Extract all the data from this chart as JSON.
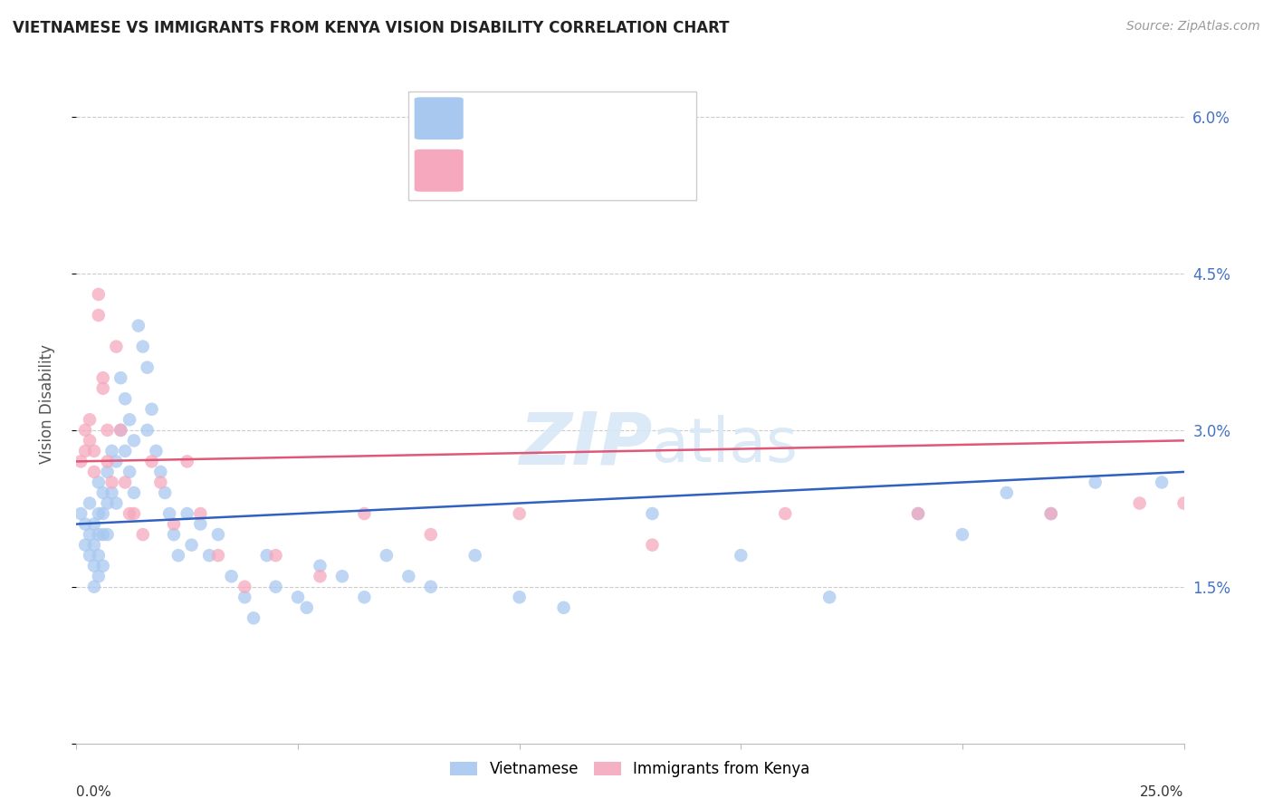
{
  "title": "VIETNAMESE VS IMMIGRANTS FROM KENYA VISION DISABILITY CORRELATION CHART",
  "source": "Source: ZipAtlas.com",
  "ylabel": "Vision Disability",
  "yticks": [
    0.0,
    0.015,
    0.03,
    0.045,
    0.06
  ],
  "ytick_labels": [
    "",
    "1.5%",
    "3.0%",
    "4.5%",
    "6.0%"
  ],
  "xlim": [
    0.0,
    0.25
  ],
  "ylim": [
    0.0,
    0.065
  ],
  "color_blue": "#a8c8f0",
  "color_pink": "#f5a8be",
  "line_blue": "#3060c0",
  "line_pink": "#e05878",
  "label1": "Vietnamese",
  "label2": "Immigrants from Kenya",
  "background": "#ffffff",
  "blue_x": [
    0.001,
    0.002,
    0.002,
    0.003,
    0.003,
    0.003,
    0.004,
    0.004,
    0.004,
    0.004,
    0.005,
    0.005,
    0.005,
    0.005,
    0.005,
    0.006,
    0.006,
    0.006,
    0.006,
    0.007,
    0.007,
    0.007,
    0.008,
    0.008,
    0.009,
    0.009,
    0.01,
    0.01,
    0.011,
    0.011,
    0.012,
    0.012,
    0.013,
    0.013,
    0.014,
    0.015,
    0.016,
    0.016,
    0.017,
    0.018,
    0.019,
    0.02,
    0.021,
    0.022,
    0.023,
    0.025,
    0.026,
    0.028,
    0.03,
    0.032,
    0.035,
    0.038,
    0.04,
    0.043,
    0.045,
    0.05,
    0.052,
    0.055,
    0.06,
    0.065,
    0.07,
    0.075,
    0.08,
    0.09,
    0.1,
    0.11,
    0.13,
    0.15,
    0.17,
    0.19,
    0.2,
    0.21,
    0.22,
    0.23,
    0.245
  ],
  "blue_y": [
    0.022,
    0.021,
    0.019,
    0.018,
    0.02,
    0.023,
    0.021,
    0.019,
    0.017,
    0.015,
    0.025,
    0.022,
    0.02,
    0.018,
    0.016,
    0.024,
    0.022,
    0.02,
    0.017,
    0.026,
    0.023,
    0.02,
    0.028,
    0.024,
    0.027,
    0.023,
    0.035,
    0.03,
    0.033,
    0.028,
    0.031,
    0.026,
    0.029,
    0.024,
    0.04,
    0.038,
    0.036,
    0.03,
    0.032,
    0.028,
    0.026,
    0.024,
    0.022,
    0.02,
    0.018,
    0.022,
    0.019,
    0.021,
    0.018,
    0.02,
    0.016,
    0.014,
    0.012,
    0.018,
    0.015,
    0.014,
    0.013,
    0.017,
    0.016,
    0.014,
    0.018,
    0.016,
    0.015,
    0.018,
    0.014,
    0.013,
    0.022,
    0.018,
    0.014,
    0.022,
    0.02,
    0.024,
    0.022,
    0.025,
    0.025
  ],
  "pink_x": [
    0.001,
    0.002,
    0.002,
    0.003,
    0.003,
    0.004,
    0.004,
    0.005,
    0.005,
    0.006,
    0.006,
    0.007,
    0.007,
    0.008,
    0.009,
    0.01,
    0.011,
    0.012,
    0.013,
    0.015,
    0.017,
    0.019,
    0.022,
    0.025,
    0.028,
    0.032,
    0.038,
    0.045,
    0.055,
    0.065,
    0.08,
    0.1,
    0.13,
    0.16,
    0.19,
    0.22,
    0.24,
    0.25
  ],
  "pink_y": [
    0.027,
    0.028,
    0.03,
    0.031,
    0.029,
    0.028,
    0.026,
    0.043,
    0.041,
    0.035,
    0.034,
    0.03,
    0.027,
    0.025,
    0.038,
    0.03,
    0.025,
    0.022,
    0.022,
    0.02,
    0.027,
    0.025,
    0.021,
    0.027,
    0.022,
    0.018,
    0.015,
    0.018,
    0.016,
    0.022,
    0.02,
    0.022,
    0.019,
    0.022,
    0.022,
    0.022,
    0.023,
    0.023
  ],
  "blue_line_x": [
    0.0,
    0.25
  ],
  "blue_line_y": [
    0.021,
    0.026
  ],
  "pink_line_x": [
    0.0,
    0.25
  ],
  "pink_line_y": [
    0.027,
    0.029
  ]
}
